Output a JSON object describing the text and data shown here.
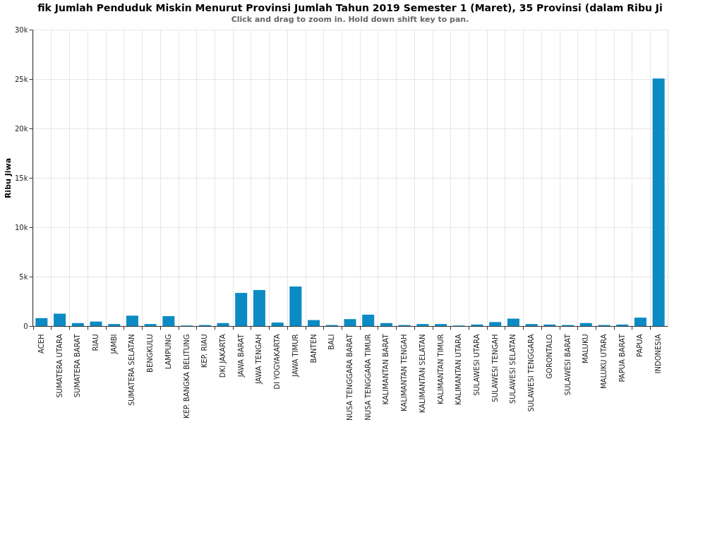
{
  "chart_data": {
    "type": "bar",
    "title": "fik Jumlah Penduduk Miskin Menurut Provinsi Jumlah Tahun 2019 Semester 1 (Maret), 35 Provinsi (dalam Ribu Ji",
    "subtitle": "Click and drag to zoom in. Hold down shift key to pan.",
    "ylabel": "Ribu Jiwa",
    "categories": [
      "ACEH",
      "SUMATERA UTARA",
      "SUMATERA BARAT",
      "RIAU",
      "JAMBI",
      "SUMATERA SELATAN",
      "BENGKULU",
      "LAMPUNG",
      "KEP. BANGKA BELITUNG",
      "KEP. RIAU",
      "DKI JAKARTA",
      "JAWA BARAT",
      "JAWA TENGAH",
      "DI YOGYAKARTA",
      "JAWA TIMUR",
      "BANTEN",
      "BALI",
      "NUSA TENGGARA BARAT",
      "NUSA TENGGARA TIMUR",
      "KALIMANTAN BARAT",
      "KALIMANTAN TENGAH",
      "KALIMANTAN SELATAN",
      "KALIMANTAN TIMUR",
      "KALIMANTAN UTARA",
      "SULAWESI UTARA",
      "SULAWESI TENGAH",
      "SULAWESI SELATAN",
      "SULAWESI TENGGARA",
      "GORONTALO",
      "SULAWESI BARAT",
      "MALUKU",
      "MALUKU UTARA",
      "PAPUA BARAT",
      "PAPUA",
      "INDONESIA"
    ],
    "values": [
      800,
      1250,
      300,
      450,
      200,
      1050,
      200,
      1000,
      50,
      100,
      300,
      3350,
      3650,
      350,
      4000,
      600,
      100,
      700,
      1150,
      300,
      100,
      200,
      200,
      50,
      150,
      400,
      750,
      200,
      150,
      100,
      300,
      100,
      150,
      850,
      25050
    ],
    "color": "#0a8bc4",
    "ylim": [
      0,
      30000
    ],
    "yticks": [
      {
        "value": 0,
        "label": "0"
      },
      {
        "value": 5000,
        "label": "5k"
      },
      {
        "value": 10000,
        "label": "10k"
      },
      {
        "value": 15000,
        "label": "15k"
      },
      {
        "value": 20000,
        "label": "20k"
      },
      {
        "value": 25000,
        "label": "25k"
      },
      {
        "value": 30000,
        "label": "30k"
      }
    ],
    "grid": true
  }
}
